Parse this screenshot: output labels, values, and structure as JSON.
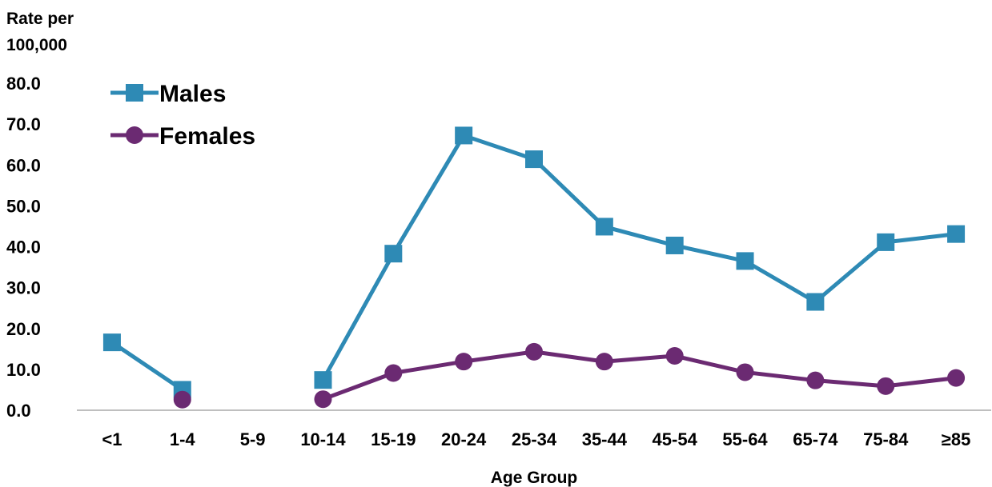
{
  "chart_data": {
    "type": "line",
    "title": "",
    "ylabel_lines": [
      "Rate per",
      "100,000"
    ],
    "xlabel": "Age Group",
    "categories": [
      "<1",
      "1-4",
      "5-9",
      "10-14",
      "15-19",
      "20-24",
      "25-34",
      "35-44",
      "45-54",
      "55-64",
      "65-74",
      "75-84",
      "≥85"
    ],
    "yticks": [
      "0.0",
      "10.0",
      "20.0",
      "30.0",
      "40.0",
      "50.0",
      "60.0",
      "70.0",
      "80.0"
    ],
    "ylim": [
      0,
      80
    ],
    "grid": false,
    "legend_position": "top-left",
    "series": [
      {
        "name": "Males",
        "marker": "square",
        "color": "#2e8ab5",
        "values": [
          16.6,
          5.0,
          null,
          7.4,
          38.3,
          67.2,
          61.4,
          44.9,
          40.3,
          36.5,
          26.5,
          41.1,
          43.1
        ]
      },
      {
        "name": "Females",
        "marker": "circle",
        "color": "#6b2a72",
        "values": [
          null,
          2.6,
          null,
          2.7,
          9.1,
          11.9,
          14.3,
          11.9,
          13.3,
          9.3,
          7.3,
          5.9,
          7.9
        ]
      }
    ]
  }
}
